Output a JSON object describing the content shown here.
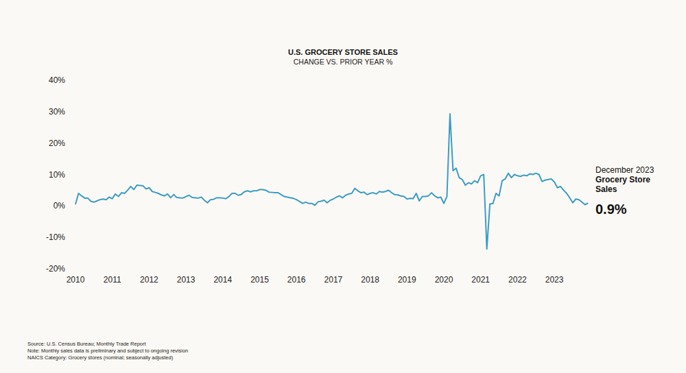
{
  "chart_data": {
    "type": "line",
    "title": "U.S. GROCERY STORE SALES",
    "subtitle": "CHANGE VS. PRIOR YEAR %",
    "color": "#3b9cc6",
    "grid": false,
    "categories": [
      "2010",
      null,
      null,
      null,
      null,
      null,
      null,
      null,
      null,
      null,
      null,
      null,
      "2011",
      null,
      null,
      null,
      null,
      null,
      null,
      null,
      null,
      null,
      null,
      null,
      "2012",
      null,
      null,
      null,
      null,
      null,
      null,
      null,
      null,
      null,
      null,
      null,
      "2013",
      null,
      null,
      null,
      null,
      null,
      null,
      null,
      null,
      null,
      null,
      null,
      "2014",
      null,
      null,
      null,
      null,
      null,
      null,
      null,
      null,
      null,
      null,
      null,
      "2015",
      null,
      null,
      null,
      null,
      null,
      null,
      null,
      null,
      null,
      null,
      null,
      "2016",
      null,
      null,
      null,
      null,
      null,
      null,
      null,
      null,
      null,
      null,
      null,
      "2017",
      null,
      null,
      null,
      null,
      null,
      null,
      null,
      null,
      null,
      null,
      null,
      "2018",
      null,
      null,
      null,
      null,
      null,
      null,
      null,
      null,
      null,
      null,
      null,
      "2019",
      null,
      null,
      null,
      null,
      null,
      null,
      null,
      null,
      null,
      null,
      null,
      "2020",
      null,
      null,
      null,
      null,
      null,
      null,
      null,
      null,
      null,
      null,
      null,
      "2021",
      null,
      null,
      null,
      null,
      null,
      null,
      null,
      null,
      null,
      null,
      null,
      "2022",
      null,
      null,
      null,
      null,
      null,
      null,
      null,
      null,
      null,
      null,
      null,
      "2023",
      null,
      null,
      null,
      null,
      null,
      null,
      null,
      null,
      null,
      null,
      null
    ],
    "values": [
      0.5,
      4.0,
      3.2,
      2.5,
      2.5,
      1.5,
      1.2,
      1.6,
      2.0,
      2.2,
      2.0,
      2.8,
      2.3,
      3.8,
      3.0,
      4.2,
      4.0,
      5.0,
      6.2,
      5.2,
      6.6,
      6.5,
      6.4,
      5.4,
      5.8,
      4.6,
      4.3,
      4.0,
      3.5,
      3.2,
      3.8,
      2.6,
      3.6,
      2.7,
      2.6,
      2.5,
      3.0,
      3.4,
      2.7,
      2.6,
      2.5,
      2.8,
      1.8,
      1.0,
      2.0,
      2.1,
      2.6,
      2.6,
      2.5,
      2.3,
      3.0,
      4.0,
      4.0,
      3.4,
      3.6,
      4.5,
      4.8,
      4.5,
      4.8,
      4.8,
      5.2,
      5.2,
      5.0,
      4.4,
      4.3,
      4.2,
      4.2,
      3.6,
      3.0,
      2.8,
      2.6,
      2.4,
      2.0,
      1.4,
      0.8,
      1.2,
      0.8,
      0.8,
      0.2,
      1.3,
      1.5,
      1.8,
      1.0,
      1.8,
      2.2,
      2.8,
      3.2,
      2.6,
      3.4,
      3.8,
      4.0,
      5.6,
      4.8,
      4.2,
      4.4,
      3.6,
      4.0,
      4.2,
      3.8,
      4.6,
      4.4,
      4.6,
      5.0,
      4.2,
      3.6,
      3.5,
      3.2,
      3.0,
      2.2,
      2.4,
      2.3,
      4.0,
      1.6,
      3.0,
      3.0,
      3.2,
      4.2,
      3.2,
      2.6,
      2.8,
      0.8,
      3.0,
      29.3,
      11.2,
      12.0,
      9.0,
      8.4,
      6.6,
      7.4,
      7.0,
      8.0,
      7.4,
      9.6,
      10.0,
      -13.7,
      0.6,
      0.8,
      4.0,
      3.2,
      8.0,
      8.6,
      10.4,
      9.0,
      10.0,
      9.6,
      9.4,
      9.8,
      9.6,
      10.2,
      10.0,
      10.4,
      10.0,
      7.8,
      8.2,
      8.4,
      8.6,
      7.6,
      5.8,
      6.2,
      5.0,
      4.0,
      2.6,
      1.0,
      2.2,
      2.0,
      1.2,
      0.4,
      0.9
    ],
    "ylim": [
      -20,
      40
    ],
    "yticks": [
      {
        "value": -20,
        "label": "-20%"
      },
      {
        "value": -10,
        "label": "-10%"
      },
      {
        "value": 0,
        "label": "0%"
      },
      {
        "value": 10,
        "label": "10%"
      },
      {
        "value": 20,
        "label": "20%"
      },
      {
        "value": 30,
        "label": "30%"
      },
      {
        "value": 40,
        "label": "40%"
      }
    ],
    "annotation": {
      "text": [
        "December 2023",
        "Grocery Store",
        "Sales"
      ],
      "value": "0.9%"
    },
    "footnotes": [
      "Source: U.S. Census Bureau; Monthly Trade Report",
      "Note: Monthly sales data is preliminary and subject to ongoing revision",
      "NAICS Category: Grocery stores (nominal; seasonally adjusted)"
    ]
  }
}
